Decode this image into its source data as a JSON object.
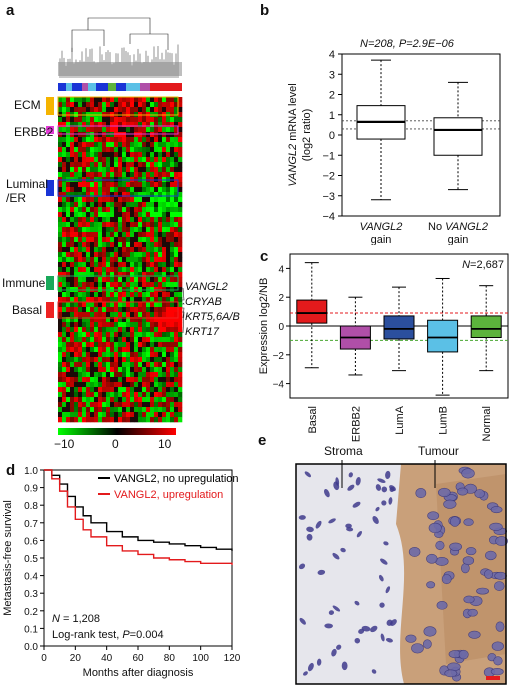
{
  "panels": {
    "a": {
      "label": "a",
      "row_groups": [
        {
          "name": "ECM",
          "color": "#f5b400"
        },
        {
          "name": "ERBB2",
          "color": "#e23bd6"
        },
        {
          "name": "Luminal\n/ER",
          "color": "#1a34d6"
        },
        {
          "name": "Immune",
          "color": "#19a85a"
        },
        {
          "name": "Basal",
          "color": "#ee2222"
        }
      ],
      "gene_labels": [
        "VANGL2",
        "CRYAB",
        "KRT5,6A/B",
        "KRT17"
      ],
      "colorbar": {
        "min": "−10",
        "mid": "0",
        "max": "10"
      }
    },
    "b": {
      "label": "b",
      "title": "N=208, P=2.9E−06",
      "ylabel": "VANGL2 mRNA level (log2 ratio)",
      "categories": [
        "VANGL2 gain",
        "No VANGL2 gain"
      ]
    },
    "c": {
      "label": "c",
      "ylabel": "Expression log2/NB",
      "annotation": "N=2,687",
      "categories": [
        "Basal",
        "ERBB2",
        "LumA",
        "LumB",
        "Normal"
      ],
      "colors": [
        "#e31a1c",
        "#b04fa8",
        "#2b4f9e",
        "#5bc0e6",
        "#5cb33c"
      ]
    },
    "d": {
      "label": "d",
      "ylabel": "Metastasis-free survival",
      "xlabel": "Months after diagnosis",
      "legend": [
        "VANGL2, no upregulation",
        "VANGL2, upregulation"
      ],
      "legend_colors": [
        "#000000",
        "#e31a1c"
      ],
      "note_n": "N = 1,208",
      "note_test": "Log-rank test, P=0.004"
    },
    "e": {
      "label": "e",
      "labels": [
        "Stroma",
        "Tumour"
      ]
    }
  },
  "chart_data": [
    {
      "type": "box",
      "panel": "b",
      "title": "N=208, P=2.9E−06",
      "ylabel": "VANGL2 mRNA level (log2 ratio)",
      "categories": [
        "VANGL2 gain",
        "No VANGL2 gain"
      ],
      "ylim": [
        -4,
        4
      ],
      "yticks": [
        -4,
        -3,
        -2,
        -1,
        0,
        1,
        2,
        3,
        4
      ],
      "boxes": [
        {
          "whisker_low": -3.2,
          "q1": -0.2,
          "median": 0.65,
          "q3": 1.45,
          "whisker_high": 3.7
        },
        {
          "whisker_low": -2.7,
          "q1": -1.0,
          "median": 0.25,
          "q3": 0.85,
          "whisker_high": 2.6
        }
      ],
      "reference_lines": [
        0.7,
        0.3
      ]
    },
    {
      "type": "box",
      "panel": "c",
      "annotation": "N=2,687",
      "ylabel": "Expression log2/NB",
      "categories": [
        "Basal",
        "ERBB2",
        "LumA",
        "LumB",
        "Normal"
      ],
      "ylim": [
        -5,
        5
      ],
      "yticks": [
        -4,
        -2,
        0,
        2,
        4
      ],
      "boxes": [
        {
          "whisker_low": -2.9,
          "q1": 0.2,
          "median": 0.9,
          "q3": 1.8,
          "whisker_high": 4.4
        },
        {
          "whisker_low": -3.4,
          "q1": -1.6,
          "median": -0.8,
          "q3": 0.0,
          "whisker_high": 2.0
        },
        {
          "whisker_low": -3.1,
          "q1": -0.9,
          "median": -0.2,
          "q3": 0.7,
          "whisker_high": 2.7
        },
        {
          "whisker_low": -4.8,
          "q1": -1.8,
          "median": -0.8,
          "q3": 0.4,
          "whisker_high": 3.3
        },
        {
          "whisker_low": -3.1,
          "q1": -0.8,
          "median": -0.2,
          "q3": 0.7,
          "whisker_high": 2.8
        }
      ],
      "reference_lines": [
        {
          "y": 0.9,
          "color": "#e31a1c",
          "style": "dashed"
        },
        {
          "y": -1.0,
          "color": "#4aa832",
          "style": "dashed"
        },
        {
          "y": 0,
          "color": "#000000",
          "style": "solid"
        }
      ]
    },
    {
      "type": "line",
      "panel": "d",
      "xlabel": "Months after diagnosis",
      "ylabel": "Metastasis-free survival",
      "xlim": [
        0,
        120
      ],
      "ylim": [
        0,
        1.0
      ],
      "xticks": [
        0,
        20,
        40,
        60,
        80,
        100,
        120
      ],
      "yticks": [
        0,
        0.1,
        0.2,
        0.3,
        0.4,
        0.5,
        0.6,
        0.7,
        0.8,
        0.9,
        1.0
      ],
      "series": [
        {
          "name": "VANGL2, no upregulation",
          "color": "#000000",
          "x": [
            0,
            5,
            10,
            15,
            20,
            25,
            30,
            40,
            50,
            60,
            70,
            80,
            90,
            100,
            110,
            120
          ],
          "y": [
            1.0,
            0.97,
            0.92,
            0.85,
            0.79,
            0.74,
            0.7,
            0.65,
            0.62,
            0.6,
            0.59,
            0.58,
            0.57,
            0.56,
            0.55,
            0.54
          ]
        },
        {
          "name": "VANGL2, upregulation",
          "color": "#e31a1c",
          "x": [
            0,
            5,
            10,
            15,
            20,
            25,
            30,
            40,
            50,
            60,
            70,
            80,
            90,
            100,
            110,
            120
          ],
          "y": [
            1.0,
            0.95,
            0.88,
            0.79,
            0.72,
            0.66,
            0.62,
            0.57,
            0.54,
            0.52,
            0.5,
            0.49,
            0.48,
            0.47,
            0.47,
            0.46
          ]
        }
      ]
    }
  ]
}
